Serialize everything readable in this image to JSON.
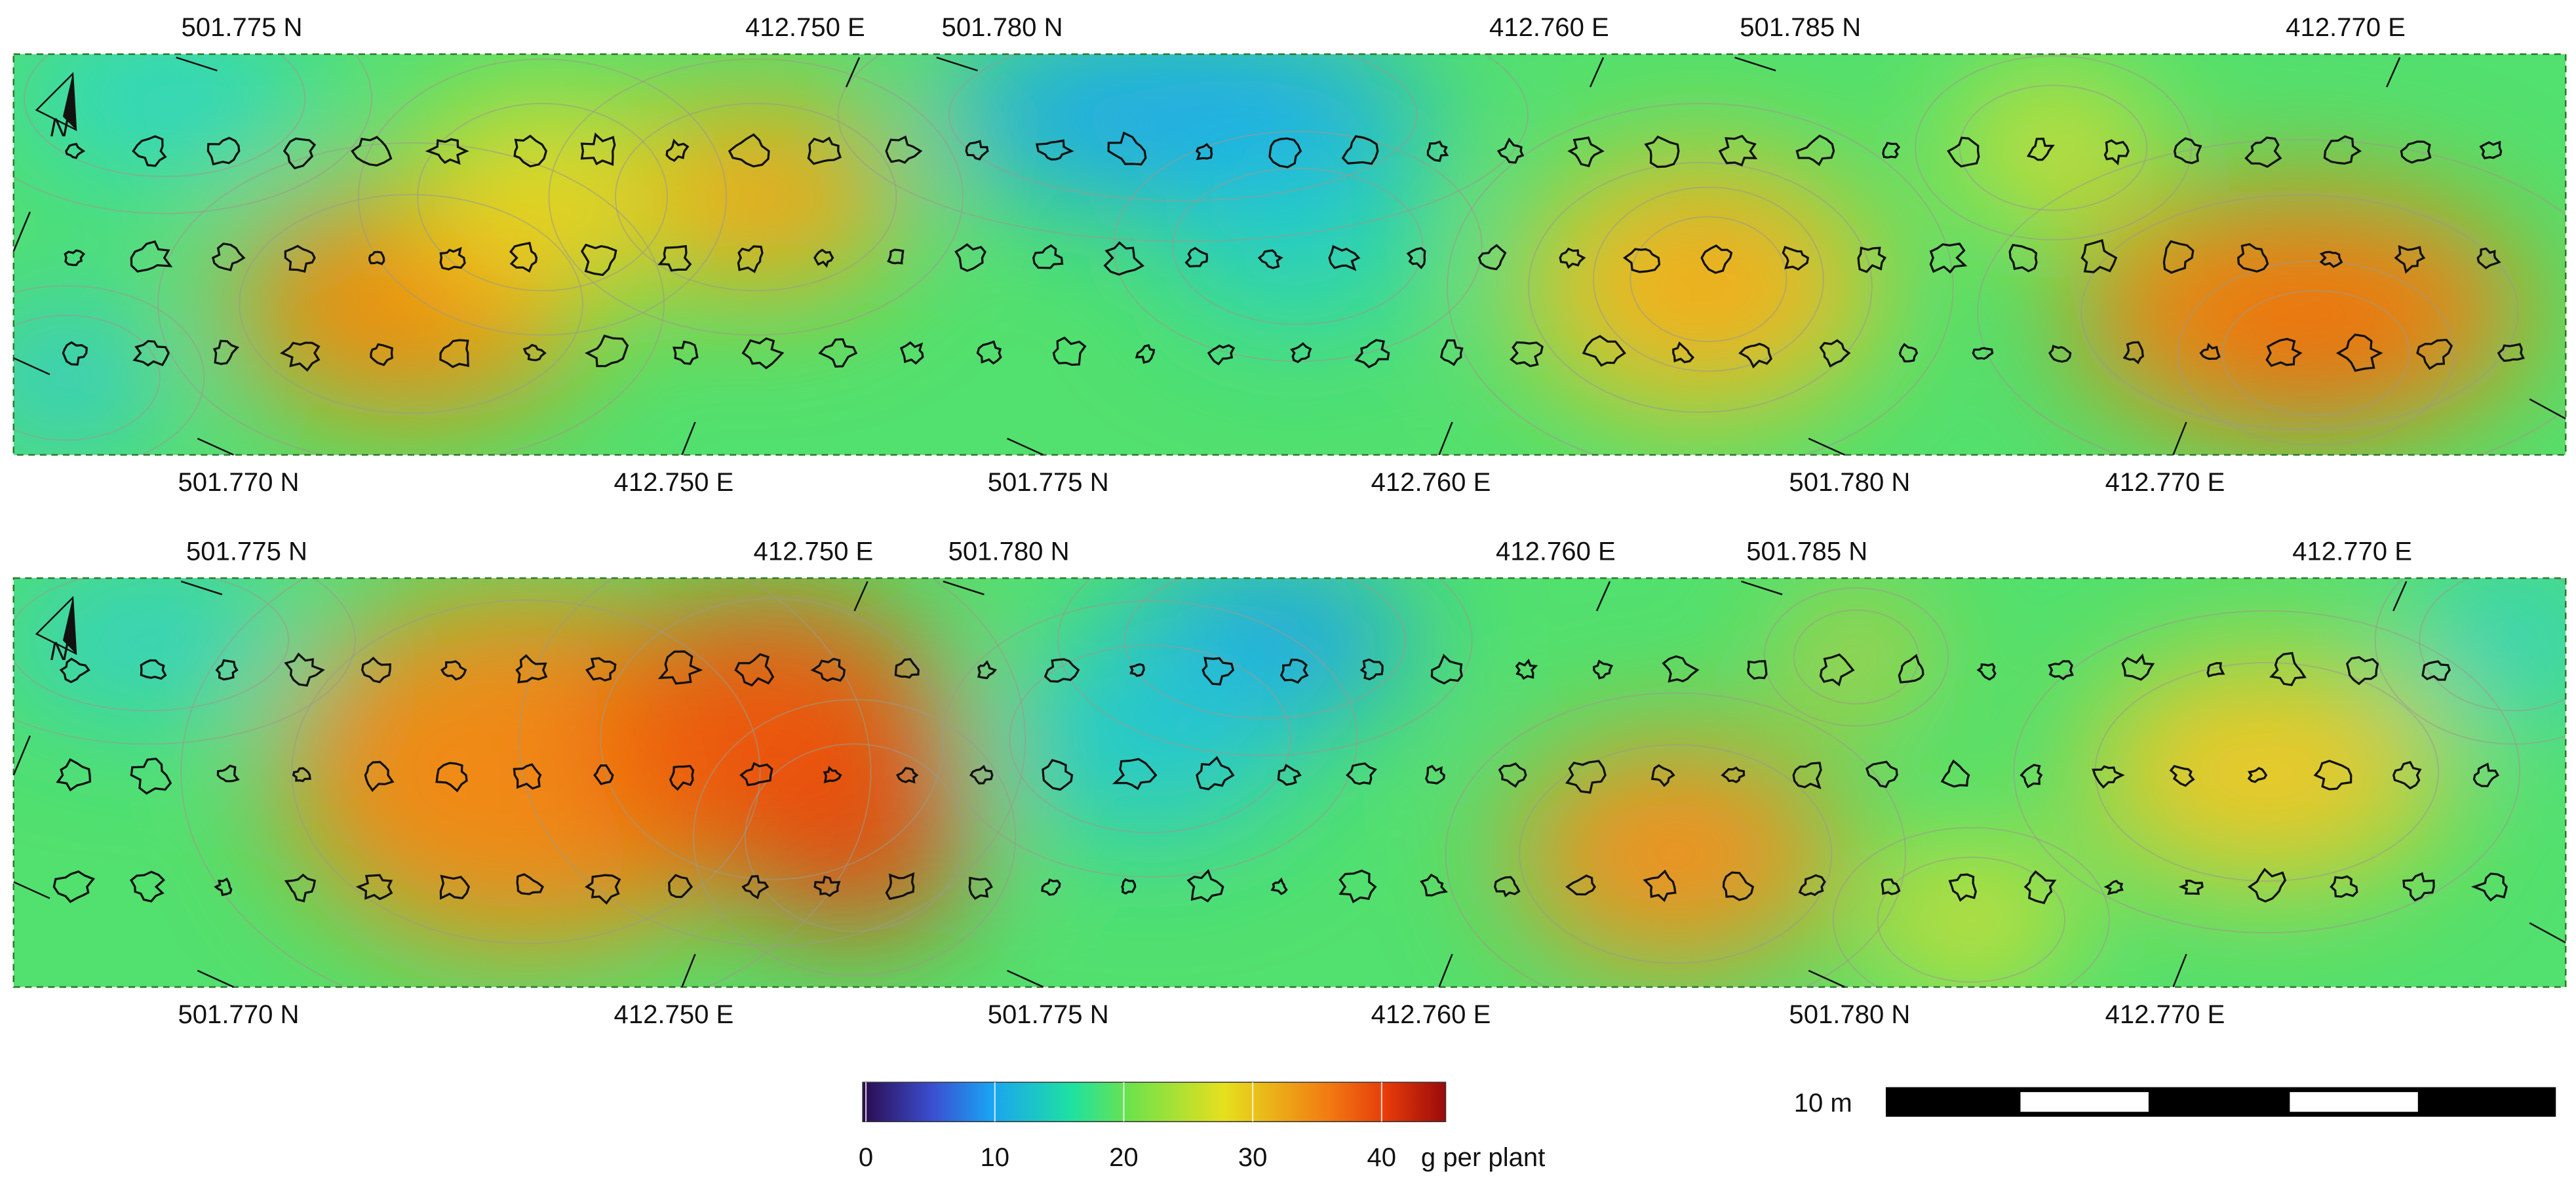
{
  "panels": [
    {
      "north": "N",
      "top_labels": [
        "501.775 N",
        "412.750 E",
        "501.780 N",
        "412.760 E",
        "501.785 N",
        "412.770 E"
      ],
      "bottom_labels": [
        "501.770 N",
        "412.750 E",
        "501.775 N",
        "412.760 E",
        "501.780 N",
        "412.770 E"
      ]
    },
    {
      "north": "N",
      "top_labels": [
        "501.775 N",
        "412.750 E",
        "501.780 N",
        "412.760 E",
        "501.785 N",
        "412.770 E"
      ],
      "bottom_labels": [
        "501.770 N",
        "412.750 E",
        "501.775 N",
        "412.760 E",
        "501.780 N",
        "412.770 E"
      ]
    }
  ],
  "colorbar": {
    "ticks": [
      0,
      10,
      20,
      30,
      40
    ],
    "unit": "g per plant"
  },
  "scale_bar": {
    "label": "10 m"
  }
}
